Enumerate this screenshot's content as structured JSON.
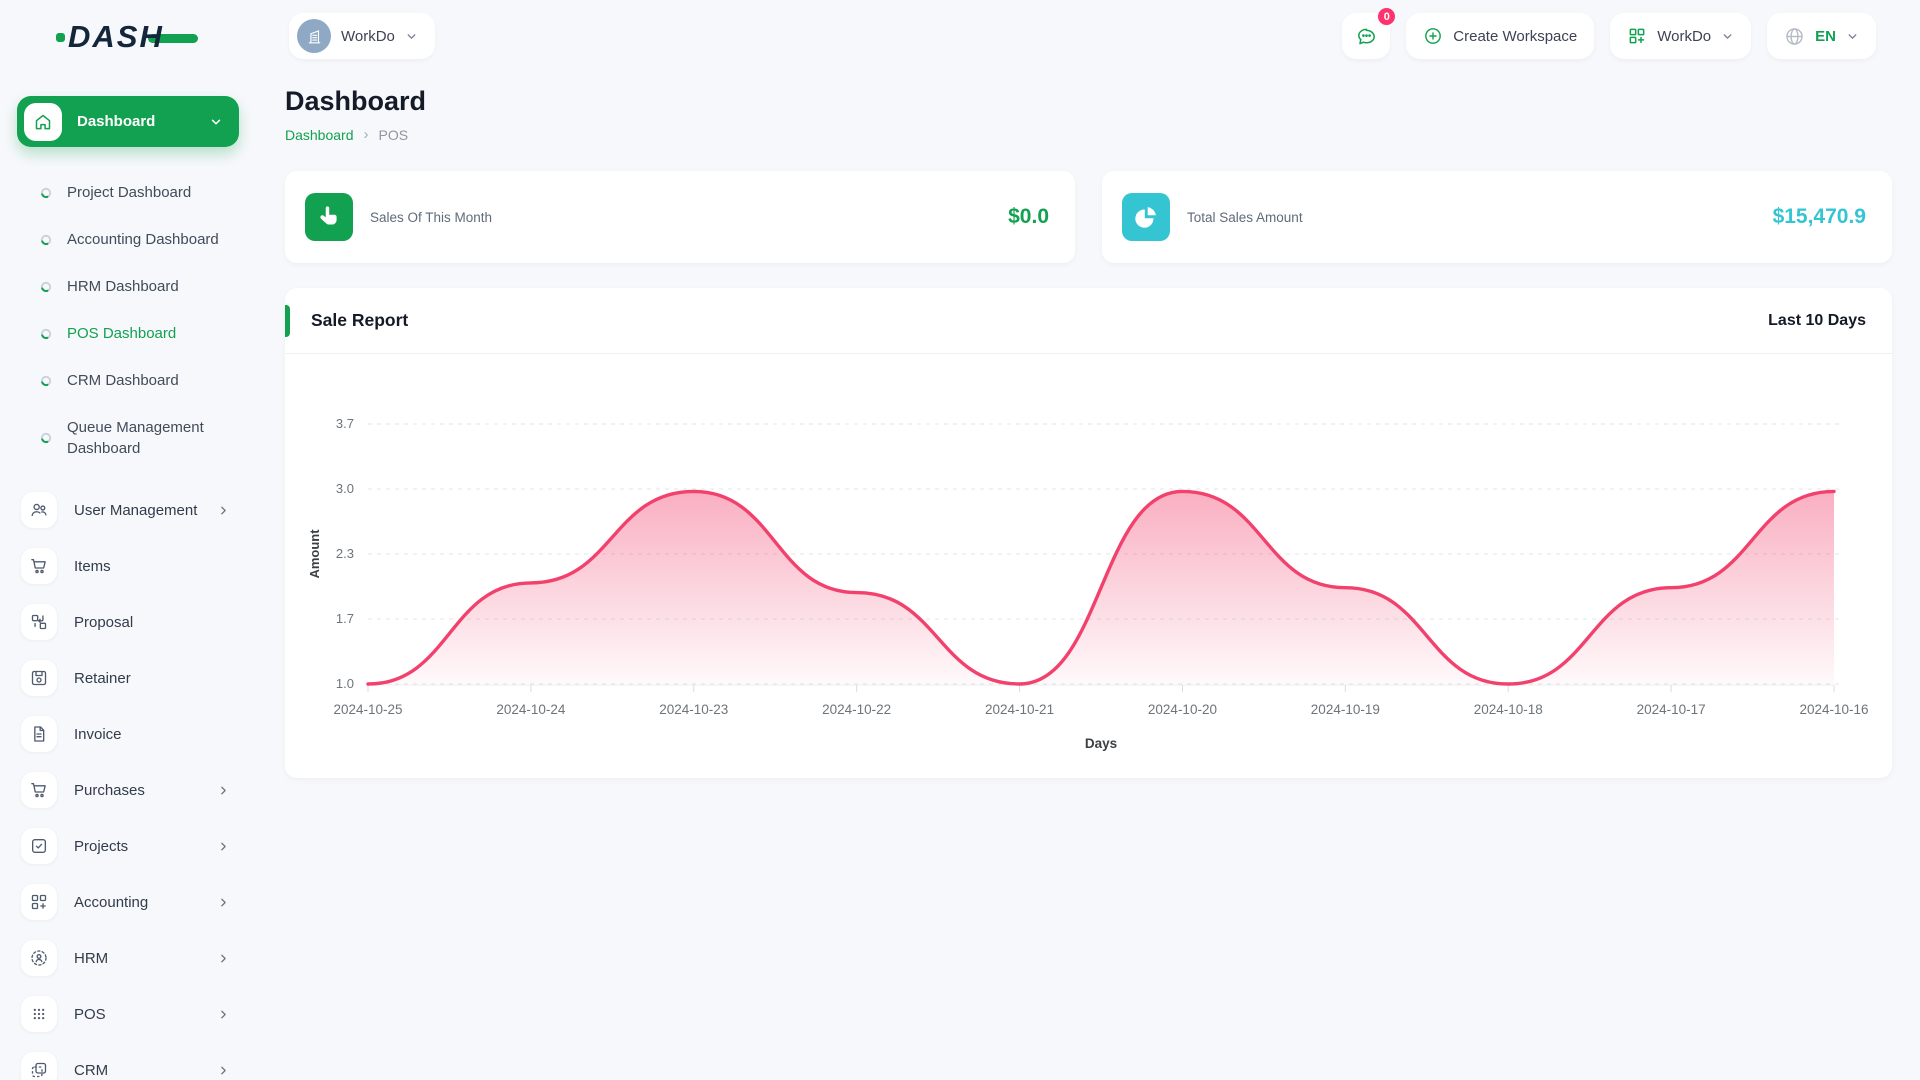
{
  "brand": {
    "logo_text": "DASH"
  },
  "colors": {
    "primary_green": "#12a150",
    "cyan": "#35c4d2",
    "chart_pink": "#f1416c",
    "badge_pink": "#fd346e"
  },
  "header": {
    "workspace_switcher_label": "WorkDo",
    "messages_badge_count": "0",
    "create_workspace_label": "Create Workspace",
    "workspace_menu_label": "WorkDo",
    "language_label": "EN"
  },
  "sidebar": {
    "active_item_label": "Dashboard",
    "dashboard_children": [
      "Project Dashboard",
      "Accounting Dashboard",
      "HRM Dashboard",
      "POS Dashboard",
      "CRM Dashboard",
      "Queue Management Dashboard"
    ],
    "active_child": "POS Dashboard",
    "items": [
      {
        "label": "User Management",
        "icon": "users-icon",
        "has_submenu": true
      },
      {
        "label": "Items",
        "icon": "cart-icon",
        "has_submenu": false
      },
      {
        "label": "Proposal",
        "icon": "proposal-icon",
        "has_submenu": false
      },
      {
        "label": "Retainer",
        "icon": "retainer-icon",
        "has_submenu": false
      },
      {
        "label": "Invoice",
        "icon": "invoice-icon",
        "has_submenu": false
      },
      {
        "label": "Purchases",
        "icon": "cart-icon",
        "has_submenu": true
      },
      {
        "label": "Projects",
        "icon": "projects-icon",
        "has_submenu": true
      },
      {
        "label": "Accounting",
        "icon": "accounting-icon",
        "has_submenu": true
      },
      {
        "label": "HRM",
        "icon": "hrm-icon",
        "has_submenu": true
      },
      {
        "label": "POS",
        "icon": "pos-icon",
        "has_submenu": true
      },
      {
        "label": "CRM",
        "icon": "crm-icon",
        "has_submenu": true
      }
    ]
  },
  "page": {
    "title": "Dashboard",
    "breadcrumb": [
      "Dashboard",
      "POS"
    ]
  },
  "stats": [
    {
      "label": "Sales Of This Month",
      "value": "$0.0",
      "icon": "tap-icon",
      "color": "#12a150"
    },
    {
      "label": "Total Sales Amount",
      "value": "$15,470.9",
      "icon": "pie-chart-icon",
      "color": "#35c4d2"
    }
  ],
  "chart_card": {
    "title": "Sale Report",
    "range_label": "Last 10 Days"
  },
  "chart_data": {
    "type": "area",
    "title": "Sale Report",
    "x": [
      "2024-10-25",
      "2024-10-24",
      "2024-10-23",
      "2024-10-22",
      "2024-10-21",
      "2024-10-20",
      "2024-10-19",
      "2024-10-18",
      "2024-10-17",
      "2024-10-16"
    ],
    "values": [
      1.0,
      2.05,
      3.0,
      1.95,
      1.0,
      3.0,
      2.0,
      1.0,
      2.0,
      3.0
    ],
    "xlabel": "Days",
    "ylabel": "Amount",
    "yticks": [
      3.7,
      3.0,
      2.3,
      1.7,
      1.0
    ],
    "ylim": [
      1.0,
      3.7
    ],
    "grid": "dashed-horizontal",
    "legend": "none",
    "line_color": "#f1416c",
    "fill": "pink-gradient"
  }
}
